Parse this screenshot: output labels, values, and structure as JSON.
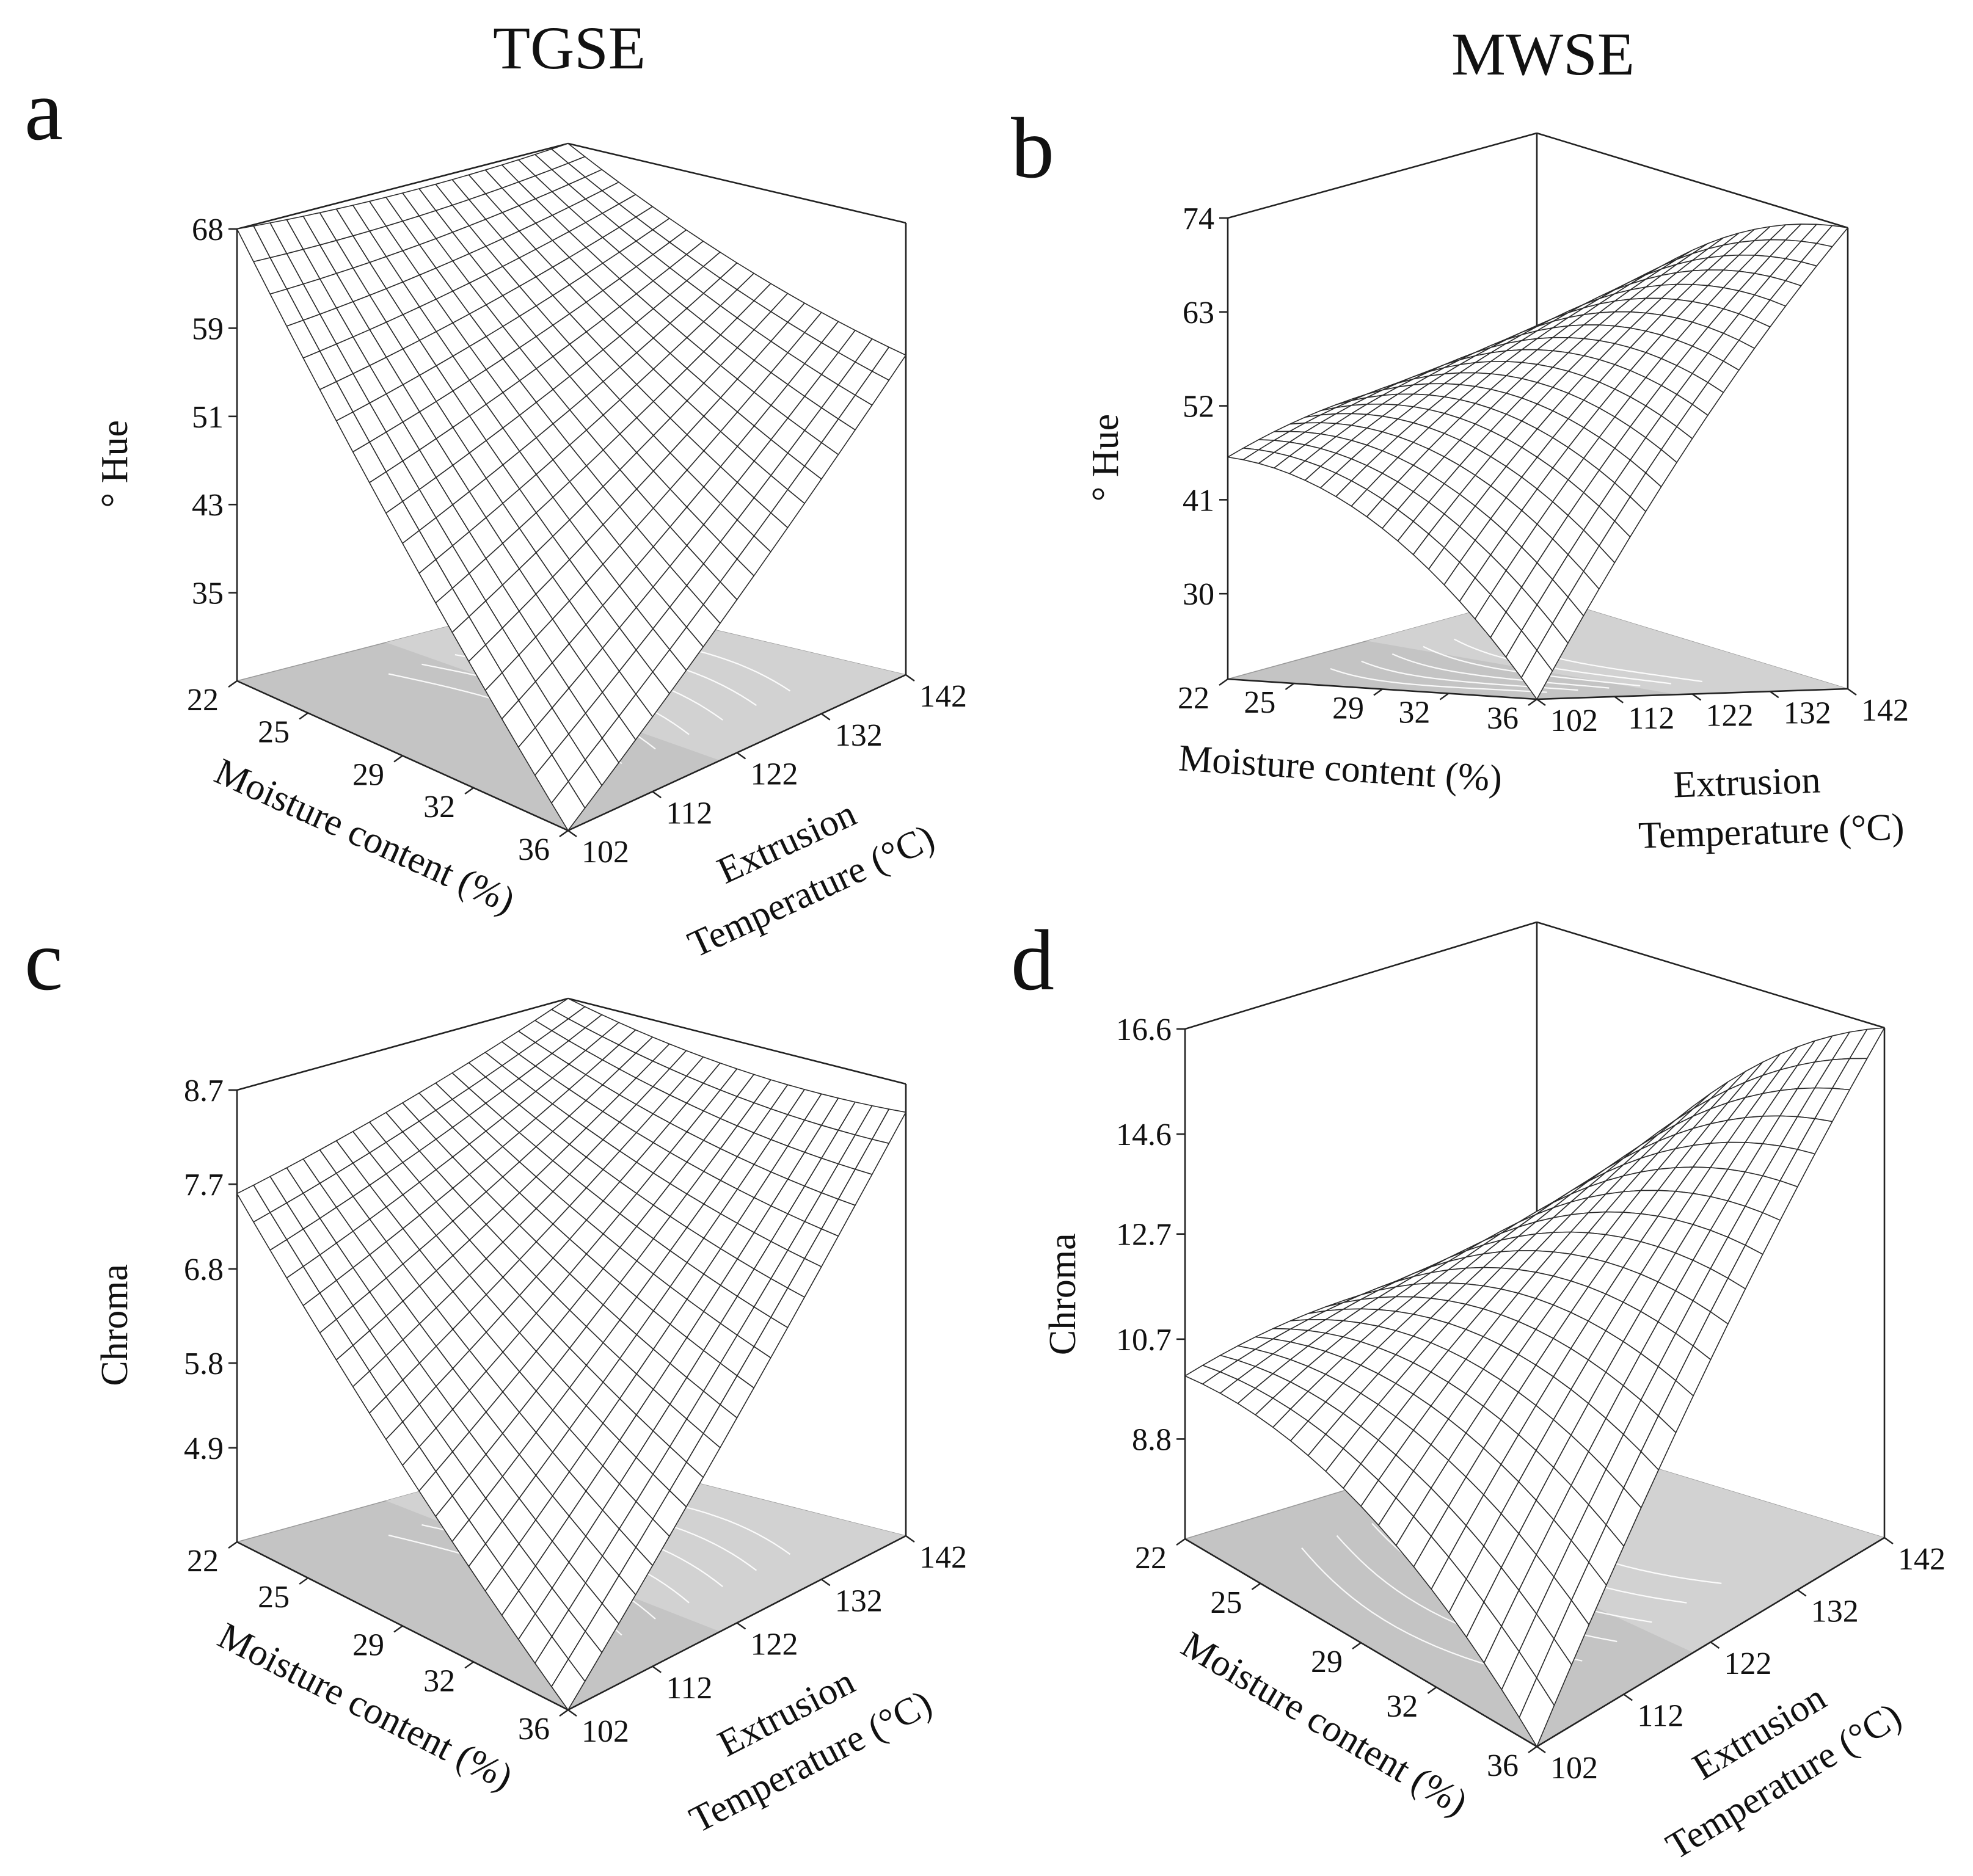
{
  "columns": [
    "TGSE",
    "MWSE"
  ],
  "chart_data": [
    {
      "panel": "a",
      "type": "surface",
      "zlabel": "° Hue",
      "xlabel": "Moisture content (%)",
      "ylabel": "Extrusion Temperature (°C)",
      "x_ticks": [
        "22",
        "25",
        "29",
        "32",
        "36"
      ],
      "y_ticks": [
        "102",
        "112",
        "122",
        "132",
        "142"
      ],
      "z_ticks": [
        "35",
        "43",
        "51",
        "59",
        "68"
      ],
      "xlim": [
        22,
        36
      ],
      "ylim": [
        102,
        142
      ],
      "zlim": [
        27,
        68
      ],
      "corner_values": {
        "x22_y102": 68,
        "x22_y142": 68,
        "x36_y102": 27,
        "x36_y142": 56
      }
    },
    {
      "panel": "b",
      "type": "surface",
      "zlabel": "° Hue",
      "xlabel": "Moisture content (%)",
      "ylabel": "Extrusion Temperature (°C)",
      "x_ticks": [
        "22",
        "25",
        "29",
        "32",
        "36"
      ],
      "y_ticks": [
        "102",
        "112",
        "122",
        "132",
        "142"
      ],
      "z_ticks": [
        "30",
        "41",
        "52",
        "63",
        "74"
      ],
      "xlim": [
        22,
        36
      ],
      "ylim": [
        102,
        142
      ],
      "zlim": [
        20,
        74
      ],
      "corner_values": {
        "x22_y102": 46,
        "x22_y142": 46,
        "x36_y102": 20,
        "x36_y142": 74
      }
    },
    {
      "panel": "c",
      "type": "surface",
      "zlabel": "Chroma",
      "xlabel": "Moisture content (%)",
      "ylabel": "Extrusion Temperature (°C)",
      "x_ticks": [
        "22",
        "25",
        "29",
        "32",
        "36"
      ],
      "y_ticks": [
        "102",
        "112",
        "122",
        "132",
        "142"
      ],
      "z_ticks": [
        "4.9",
        "5.8",
        "6.8",
        "7.7",
        "8.7"
      ],
      "xlim": [
        22,
        36
      ],
      "ylim": [
        102,
        142
      ],
      "zlim": [
        3.9,
        8.7
      ],
      "corner_values": {
        "x22_y102": 7.6,
        "x22_y142": 8.7,
        "x36_y102": 3.9,
        "x36_y142": 8.4
      }
    },
    {
      "panel": "d",
      "type": "surface",
      "zlabel": "Chroma",
      "xlabel": "Moisture content (%)",
      "ylabel": "Extrusion Temperature (°C)",
      "x_ticks": [
        "22",
        "25",
        "29",
        "32",
        "36"
      ],
      "y_ticks": [
        "102",
        "112",
        "122",
        "132",
        "142"
      ],
      "z_ticks": [
        "8.8",
        "10.7",
        "12.7",
        "14.6",
        "16.6"
      ],
      "xlim": [
        22,
        36
      ],
      "ylim": [
        102,
        142
      ],
      "zlim": [
        6.9,
        16.6
      ],
      "corner_values": {
        "x22_y102": 10.0,
        "x22_y142": 10.0,
        "x36_y102": 6.9,
        "x36_y142": 16.6
      }
    }
  ]
}
